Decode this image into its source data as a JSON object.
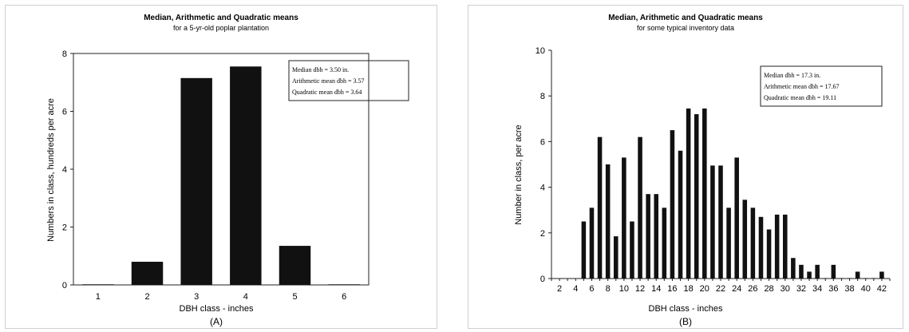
{
  "chart_data": [
    {
      "type": "bar",
      "title": "Median, Arithmetic and Quadratic means",
      "subtitle": "for a 5-yr-old poplar plantation",
      "xlabel": "DBH class - inches",
      "ylabel": "Numbers in class, hundreds per acre",
      "caption": "(A)",
      "categories": [
        "1",
        "2",
        "3",
        "4",
        "5",
        "6"
      ],
      "values": [
        0.02,
        0.8,
        7.15,
        7.55,
        1.35,
        0.02
      ],
      "ylim": [
        0,
        8
      ],
      "yticks": [
        "0",
        "2",
        "4",
        "6",
        "8"
      ],
      "grid": false,
      "legend": "none",
      "annotations": [
        "Median dbh = 3.50 in.",
        "Arithmetic mean dbh = 3.57",
        "Quadratic mean dbh = 3.64"
      ],
      "annotation_position": "top-right",
      "bar_color": "#111111"
    },
    {
      "type": "bar",
      "title": "Median, Arithmetic and Quadratic means",
      "subtitle": "for some typical inventory data",
      "xlabel": "DBH class - inches",
      "ylabel": "Number in class, per acre",
      "caption": "(B)",
      "x": [
        5,
        6,
        7,
        8,
        9,
        10,
        11,
        12,
        13,
        14,
        15,
        16,
        17,
        18,
        19,
        20,
        21,
        22,
        23,
        24,
        25,
        26,
        27,
        28,
        29,
        30,
        31,
        32,
        33,
        34,
        35,
        36,
        37,
        38,
        39,
        40,
        41,
        42
      ],
      "values": [
        2.5,
        3.1,
        6.2,
        5.0,
        1.85,
        5.3,
        2.5,
        6.2,
        3.7,
        3.7,
        3.1,
        6.5,
        5.6,
        7.45,
        7.2,
        7.45,
        4.95,
        4.95,
        3.1,
        5.3,
        3.45,
        3.1,
        2.7,
        2.15,
        2.8,
        2.8,
        0.9,
        0.6,
        0.3,
        0.6,
        0.02,
        0.6,
        0.02,
        0.02,
        0.3,
        0.02,
        0.02,
        0.3
      ],
      "xlim": [
        1,
        43
      ],
      "xticks": [
        "2",
        "4",
        "6",
        "8",
        "10",
        "12",
        "14",
        "16",
        "18",
        "20",
        "22",
        "24",
        "26",
        "28",
        "30",
        "32",
        "34",
        "36",
        "38",
        "40",
        "42"
      ],
      "ylim": [
        0,
        10
      ],
      "yticks": [
        "0",
        "2",
        "4",
        "6",
        "8",
        "10"
      ],
      "grid": false,
      "legend": "none",
      "annotations": [
        "Median dbh = 17.3 in.",
        "Arithmetic mean dbh = 17.67",
        "Quadratic mean dbh = 19.11"
      ],
      "annotation_position": "top-right",
      "bar_color": "#111111"
    }
  ]
}
